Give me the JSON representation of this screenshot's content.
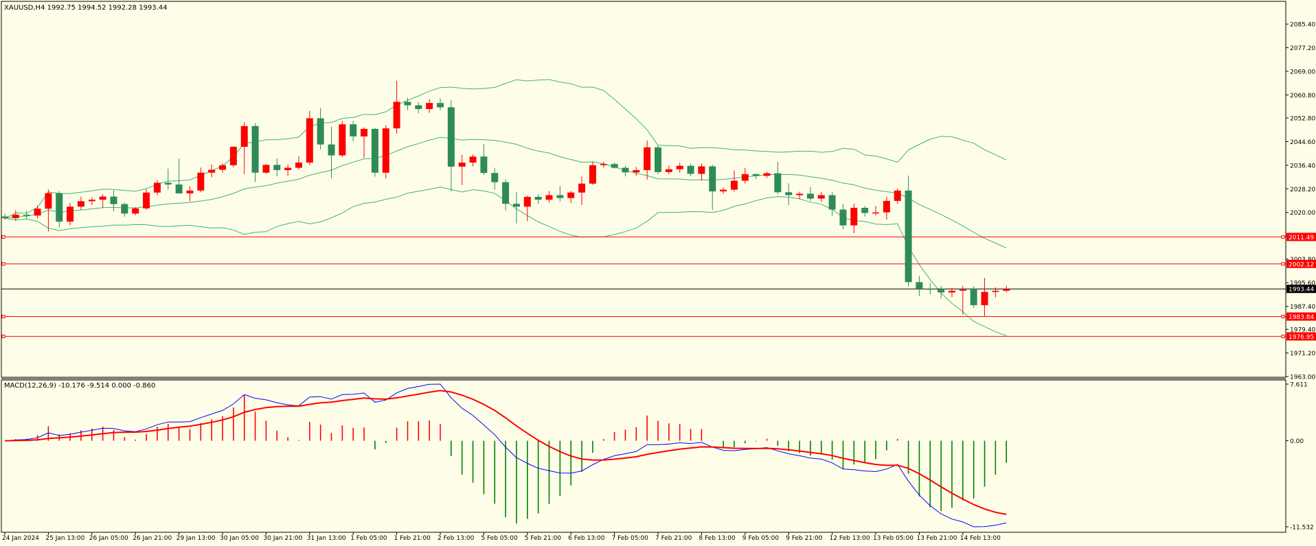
{
  "window": {
    "symbol_header": "XAUUSD,H4  1992.75 1994.52 1992.28 1993.44",
    "macd_header": "MACD(12,26,9) -10.176 -9.514 0.000 -0.860"
  },
  "chart_data": {
    "type": "candlestick",
    "symbol": "XAUUSD",
    "timeframe": "H4",
    "last": {
      "open": 1992.75,
      "high": 1994.52,
      "low": 1992.28,
      "close": 1993.44
    },
    "price_axis": {
      "ylim": [
        1963.0,
        2089.0
      ],
      "ticks": [
        "2085.40",
        "2077.20",
        "2069.00",
        "2060.80",
        "2052.80",
        "2044.60",
        "2036.40",
        "2028.20",
        "2020.00",
        "2011.80",
        "2003.80",
        "1995.60",
        "1987.40",
        "1979.40",
        "1971.20",
        "1963.00"
      ],
      "tick_values": [
        2085.4,
        2077.2,
        2069.0,
        2060.8,
        2052.8,
        2044.6,
        2036.4,
        2028.2,
        2020.0,
        2011.8,
        2003.8,
        1995.6,
        1987.4,
        1979.4,
        1971.2,
        1963.0
      ]
    },
    "horizontal_levels": [
      {
        "label": "2011.49",
        "value": 2011.49,
        "color": "#ff0000"
      },
      {
        "label": "2002.12",
        "value": 2002.12,
        "color": "#ff0000"
      },
      {
        "label": "1983.84",
        "value": 1983.84,
        "color": "#ff0000"
      },
      {
        "label": "1976.95",
        "value": 1976.95,
        "color": "#ff0000"
      }
    ],
    "current_price": {
      "label": "1993.44",
      "value": 1993.44
    },
    "candle_colors": {
      "bull": "#ff0000",
      "bear": "#2e8b57",
      "bands": "#3cb371"
    },
    "x_labels": [
      "24 Jan 2024",
      "25 Jan 13:00",
      "26 Jan 05:00",
      "26 Jan 21:00",
      "29 Jan 13:00",
      "30 Jan 05:00",
      "30 Jan 21:00",
      "31 Jan 13:00",
      "1 Feb 05:00",
      "1 Feb 21:00",
      "2 Feb 13:00",
      "5 Feb 05:00",
      "5 Feb 21:00",
      "6 Feb 13:00",
      "7 Feb 05:00",
      "7 Feb 21:00",
      "8 Feb 13:00",
      "9 Feb 05:00",
      "9 Feb 21:00",
      "12 Feb 13:00",
      "13 Feb 05:00",
      "13 Feb 21:00",
      "14 Feb 13:00"
    ],
    "candles": [
      {
        "o": 2018.6,
        "h": 2019.5,
        "l": 2017.4,
        "c": 2018.0
      },
      {
        "o": 2018.0,
        "h": 2020.8,
        "l": 2017.0,
        "c": 2019.2
      },
      {
        "o": 2019.2,
        "h": 2020.6,
        "l": 2017.8,
        "c": 2018.9
      },
      {
        "o": 2018.9,
        "h": 2022.4,
        "l": 2017.9,
        "c": 2021.3
      },
      {
        "o": 2021.3,
        "h": 2028.0,
        "l": 2013.4,
        "c": 2026.7
      },
      {
        "o": 2026.7,
        "h": 2027.4,
        "l": 2014.8,
        "c": 2016.8
      },
      {
        "o": 2016.8,
        "h": 2023.4,
        "l": 2015.5,
        "c": 2022.0
      },
      {
        "o": 2022.0,
        "h": 2025.5,
        "l": 2021.0,
        "c": 2023.9
      },
      {
        "o": 2023.9,
        "h": 2025.3,
        "l": 2022.5,
        "c": 2024.4
      },
      {
        "o": 2024.4,
        "h": 2026.3,
        "l": 2021.5,
        "c": 2025.5
      },
      {
        "o": 2025.5,
        "h": 2027.7,
        "l": 2020.4,
        "c": 2022.9
      },
      {
        "o": 2022.9,
        "h": 2023.4,
        "l": 2018.5,
        "c": 2019.6
      },
      {
        "o": 2019.6,
        "h": 2021.8,
        "l": 2019.0,
        "c": 2021.4
      },
      {
        "o": 2021.4,
        "h": 2028.0,
        "l": 2020.9,
        "c": 2026.9
      },
      {
        "o": 2026.9,
        "h": 2031.3,
        "l": 2026.0,
        "c": 2030.3
      },
      {
        "o": 2030.3,
        "h": 2035.2,
        "l": 2028.0,
        "c": 2029.7
      },
      {
        "o": 2029.7,
        "h": 2038.7,
        "l": 2026.6,
        "c": 2026.6
      },
      {
        "o": 2026.6,
        "h": 2029.1,
        "l": 2023.8,
        "c": 2027.6
      },
      {
        "o": 2027.6,
        "h": 2035.6,
        "l": 2027.0,
        "c": 2033.8
      },
      {
        "o": 2033.8,
        "h": 2036.6,
        "l": 2032.2,
        "c": 2034.8
      },
      {
        "o": 2034.8,
        "h": 2037.0,
        "l": 2033.8,
        "c": 2036.4
      },
      {
        "o": 2036.4,
        "h": 2043.0,
        "l": 2035.6,
        "c": 2042.8
      },
      {
        "o": 2042.8,
        "h": 2051.3,
        "l": 2033.3,
        "c": 2050.0
      },
      {
        "o": 2050.0,
        "h": 2051.0,
        "l": 2030.6,
        "c": 2033.8
      },
      {
        "o": 2033.8,
        "h": 2036.8,
        "l": 2033.4,
        "c": 2036.5
      },
      {
        "o": 2036.5,
        "h": 2038.8,
        "l": 2032.5,
        "c": 2034.7
      },
      {
        "o": 2034.7,
        "h": 2036.6,
        "l": 2032.7,
        "c": 2035.5
      },
      {
        "o": 2035.5,
        "h": 2039.5,
        "l": 2034.8,
        "c": 2037.3
      },
      {
        "o": 2037.3,
        "h": 2055.3,
        "l": 2036.5,
        "c": 2052.7
      },
      {
        "o": 2052.7,
        "h": 2056.3,
        "l": 2041.9,
        "c": 2043.6
      },
      {
        "o": 2043.6,
        "h": 2049.8,
        "l": 2031.9,
        "c": 2039.8
      },
      {
        "o": 2039.8,
        "h": 2051.8,
        "l": 2039.2,
        "c": 2050.6
      },
      {
        "o": 2050.6,
        "h": 2051.7,
        "l": 2044.7,
        "c": 2046.4
      },
      {
        "o": 2046.4,
        "h": 2049.5,
        "l": 2039.0,
        "c": 2049.0
      },
      {
        "o": 2049.0,
        "h": 2049.4,
        "l": 2032.4,
        "c": 2033.8
      },
      {
        "o": 2033.8,
        "h": 2050.3,
        "l": 2031.8,
        "c": 2049.2
      },
      {
        "o": 2049.2,
        "h": 2065.7,
        "l": 2047.4,
        "c": 2058.4
      },
      {
        "o": 2058.4,
        "h": 2059.8,
        "l": 2055.5,
        "c": 2057.2
      },
      {
        "o": 2057.2,
        "h": 2058.3,
        "l": 2054.4,
        "c": 2055.9
      },
      {
        "o": 2055.9,
        "h": 2059.4,
        "l": 2054.6,
        "c": 2058.0
      },
      {
        "o": 2058.0,
        "h": 2059.6,
        "l": 2055.5,
        "c": 2056.5
      },
      {
        "o": 2056.5,
        "h": 2058.9,
        "l": 2027.3,
        "c": 2035.9
      },
      {
        "o": 2035.9,
        "h": 2040.0,
        "l": 2029.5,
        "c": 2037.3
      },
      {
        "o": 2037.3,
        "h": 2040.1,
        "l": 2036.0,
        "c": 2039.4
      },
      {
        "o": 2039.4,
        "h": 2043.8,
        "l": 2033.0,
        "c": 2033.7
      },
      {
        "o": 2033.7,
        "h": 2035.4,
        "l": 2027.9,
        "c": 2030.5
      },
      {
        "o": 2030.5,
        "h": 2031.5,
        "l": 2020.7,
        "c": 2023.0
      },
      {
        "o": 2023.0,
        "h": 2027.0,
        "l": 2016.2,
        "c": 2022.0
      },
      {
        "o": 2022.0,
        "h": 2025.8,
        "l": 2017.0,
        "c": 2025.4
      },
      {
        "o": 2025.4,
        "h": 2026.3,
        "l": 2023.0,
        "c": 2024.4
      },
      {
        "o": 2024.4,
        "h": 2027.4,
        "l": 2023.5,
        "c": 2026.0
      },
      {
        "o": 2026.0,
        "h": 2029.2,
        "l": 2023.8,
        "c": 2025.0
      },
      {
        "o": 2025.0,
        "h": 2027.5,
        "l": 2023.2,
        "c": 2026.9
      },
      {
        "o": 2026.9,
        "h": 2032.5,
        "l": 2022.6,
        "c": 2030.0
      },
      {
        "o": 2030.0,
        "h": 2037.7,
        "l": 2029.6,
        "c": 2036.4
      },
      {
        "o": 2036.4,
        "h": 2037.5,
        "l": 2035.6,
        "c": 2036.8
      },
      {
        "o": 2036.8,
        "h": 2037.3,
        "l": 2035.2,
        "c": 2035.5
      },
      {
        "o": 2035.5,
        "h": 2036.1,
        "l": 2032.5,
        "c": 2033.9
      },
      {
        "o": 2033.9,
        "h": 2035.8,
        "l": 2032.7,
        "c": 2034.7
      },
      {
        "o": 2034.7,
        "h": 2045.0,
        "l": 2031.4,
        "c": 2042.6
      },
      {
        "o": 2042.6,
        "h": 2043.3,
        "l": 2033.2,
        "c": 2034.0
      },
      {
        "o": 2034.0,
        "h": 2036.3,
        "l": 2033.2,
        "c": 2035.0
      },
      {
        "o": 2035.0,
        "h": 2037.2,
        "l": 2033.8,
        "c": 2036.2
      },
      {
        "o": 2036.2,
        "h": 2036.9,
        "l": 2032.5,
        "c": 2033.4
      },
      {
        "o": 2033.4,
        "h": 2037.0,
        "l": 2031.0,
        "c": 2036.0
      },
      {
        "o": 2036.0,
        "h": 2036.6,
        "l": 2020.8,
        "c": 2027.3
      },
      {
        "o": 2027.3,
        "h": 2028.6,
        "l": 2026.5,
        "c": 2027.9
      },
      {
        "o": 2027.9,
        "h": 2034.6,
        "l": 2027.2,
        "c": 2031.0
      },
      {
        "o": 2031.0,
        "h": 2035.5,
        "l": 2030.0,
        "c": 2033.3
      },
      {
        "o": 2033.3,
        "h": 2033.6,
        "l": 2031.6,
        "c": 2032.7
      },
      {
        "o": 2032.7,
        "h": 2034.2,
        "l": 2032.0,
        "c": 2033.6
      },
      {
        "o": 2033.6,
        "h": 2037.6,
        "l": 2026.4,
        "c": 2027.0
      },
      {
        "o": 2027.0,
        "h": 2030.1,
        "l": 2022.5,
        "c": 2026.0
      },
      {
        "o": 2026.0,
        "h": 2027.2,
        "l": 2024.6,
        "c": 2026.5
      },
      {
        "o": 2026.5,
        "h": 2028.8,
        "l": 2024.0,
        "c": 2024.8
      },
      {
        "o": 2024.8,
        "h": 2027.0,
        "l": 2023.6,
        "c": 2026.0
      },
      {
        "o": 2026.0,
        "h": 2027.0,
        "l": 2018.8,
        "c": 2021.0
      },
      {
        "o": 2021.0,
        "h": 2023.0,
        "l": 2014.2,
        "c": 2015.5
      },
      {
        "o": 2015.5,
        "h": 2023.0,
        "l": 2012.8,
        "c": 2021.6
      },
      {
        "o": 2021.6,
        "h": 2022.2,
        "l": 2018.6,
        "c": 2019.8
      },
      {
        "o": 2019.8,
        "h": 2022.3,
        "l": 2019.0,
        "c": 2020.0
      },
      {
        "o": 2020.0,
        "h": 2025.5,
        "l": 2017.5,
        "c": 2024.0
      },
      {
        "o": 2024.0,
        "h": 2028.3,
        "l": 2023.0,
        "c": 2027.6
      },
      {
        "o": 2027.6,
        "h": 2032.8,
        "l": 1994.2,
        "c": 1995.8
      },
      {
        "o": 1995.8,
        "h": 1998.0,
        "l": 1991.0,
        "c": 1993.5
      },
      {
        "o": 1993.5,
        "h": 1995.5,
        "l": 1991.5,
        "c": 1993.2
      },
      {
        "o": 1993.2,
        "h": 1994.5,
        "l": 1990.0,
        "c": 1992.2
      },
      {
        "o": 1992.2,
        "h": 1993.8,
        "l": 1990.5,
        "c": 1992.8
      },
      {
        "o": 1992.8,
        "h": 1994.5,
        "l": 1984.5,
        "c": 1993.2
      },
      {
        "o": 1993.2,
        "h": 1994.4,
        "l": 1986.8,
        "c": 1987.8
      },
      {
        "o": 1987.8,
        "h": 1997.3,
        "l": 1984.0,
        "c": 1992.4
      },
      {
        "o": 1992.4,
        "h": 1994.0,
        "l": 1990.5,
        "c": 1992.8
      },
      {
        "o": 1992.8,
        "h": 1994.6,
        "l": 1992.2,
        "c": 1993.4
      }
    ],
    "macd_axis": {
      "ylim": [
        -11.532,
        7.611
      ],
      "ticks": [
        "7.611",
        "0.00",
        "-11.532"
      ],
      "tick_values": [
        7.611,
        0.0,
        -11.532
      ]
    },
    "macd_colors": {
      "hist_pos": "#ff0000",
      "hist_neg": "#008000",
      "macd": "#0000ff",
      "signal": "#ff0000"
    }
  }
}
